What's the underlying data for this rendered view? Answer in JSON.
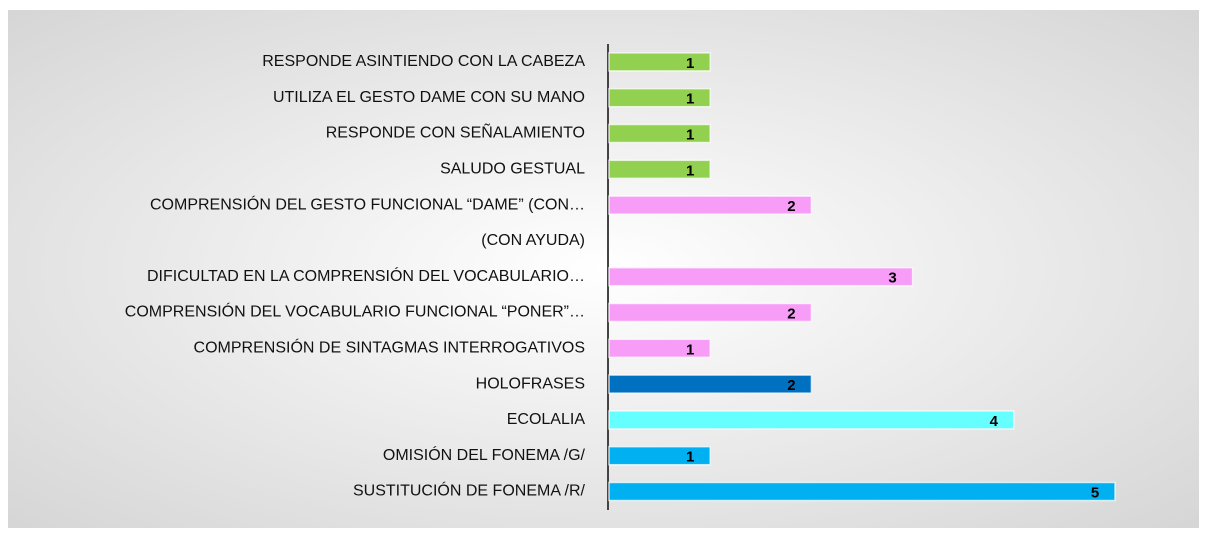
{
  "chart_data": {
    "type": "bar",
    "orientation": "horizontal",
    "categories": [
      "RESPONDE ASINTIENDO CON LA CABEZA",
      "UTILIZA EL GESTO DAME CON SU MANO",
      "RESPONDE CON SEÑALAMIENTO",
      "SALUDO GESTUAL",
      "COMPRENSIÓN DEL GESTO FUNCIONAL “DAME” (CON…",
      "(CON AYUDA)",
      "DIFICULTAD EN LA COMPRENSIÓN DEL VOCABULARIO…",
      "COMPRENSIÓN DEL VOCABULARIO FUNCIONAL “PONER”…",
      "COMPRENSIÓN DE SINTAGMAS INTERROGATIVOS",
      "HOLOFRASES",
      "ECOLALIA",
      "OMISIÓN DEL FONEMA /G/",
      "SUSTITUCIÓN DE FONEMA /R/"
    ],
    "values": [
      1,
      1,
      1,
      1,
      2,
      null,
      3,
      2,
      1,
      2,
      4,
      1,
      5
    ],
    "colors": [
      "#92d050",
      "#92d050",
      "#92d050",
      "#92d050",
      "#f79cf7",
      "#f79cf7",
      "#f79cf7",
      "#f79cf7",
      "#f79cf7",
      "#0070c0",
      "#66ffff",
      "#00b0f0",
      "#00b0f0"
    ]
  }
}
